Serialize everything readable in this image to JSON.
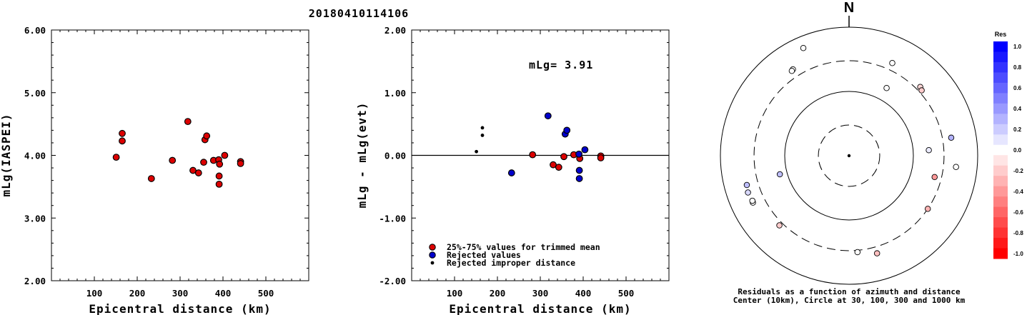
{
  "title": "20180410114106",
  "chart_data": [
    {
      "type": "scatter",
      "xlabel": "Epicentral distance (km)",
      "ylabel": "mLg(IASPEI)",
      "xlim": [
        0,
        600
      ],
      "ylim": [
        2.0,
        6.0
      ],
      "xticks": [
        "100",
        "200",
        "300",
        "400",
        "500"
      ],
      "yticks": [
        "2.00",
        "3.00",
        "4.00",
        "5.00",
        "6.00"
      ],
      "points": [
        {
          "x": 151,
          "y": 3.97
        },
        {
          "x": 165,
          "y": 4.35
        },
        {
          "x": 165,
          "y": 4.23
        },
        {
          "x": 233,
          "y": 3.63
        },
        {
          "x": 282,
          "y": 3.92
        },
        {
          "x": 318,
          "y": 4.54
        },
        {
          "x": 330,
          "y": 3.76
        },
        {
          "x": 343,
          "y": 3.72
        },
        {
          "x": 355,
          "y": 3.89
        },
        {
          "x": 358,
          "y": 4.25
        },
        {
          "x": 362,
          "y": 4.31
        },
        {
          "x": 378,
          "y": 3.92
        },
        {
          "x": 390,
          "y": 3.93
        },
        {
          "x": 391,
          "y": 3.54
        },
        {
          "x": 391,
          "y": 3.67
        },
        {
          "x": 392,
          "y": 3.86
        },
        {
          "x": 404,
          "y": 4.0
        },
        {
          "x": 441,
          "y": 3.9
        },
        {
          "x": 441,
          "y": 3.87
        }
      ]
    },
    {
      "type": "scatter",
      "xlabel": "Epicentral distance (km)",
      "ylabel": "mLg - mLg(evt)",
      "xlim": [
        0,
        600
      ],
      "ylim": [
        -2.0,
        2.0
      ],
      "xticks": [
        "100",
        "200",
        "300",
        "400",
        "500"
      ],
      "yticks": [
        "-2.00",
        "-1.00",
        "0.00",
        "1.00",
        "2.00"
      ],
      "annotation": "mLg= 3.91",
      "zero_line": 0,
      "series": [
        {
          "name": "25%-75% values for trimmed mean",
          "color": "#dd0000",
          "points": [
            {
              "x": 282,
              "y": 0.01
            },
            {
              "x": 330,
              "y": -0.15
            },
            {
              "x": 343,
              "y": -0.19
            },
            {
              "x": 355,
              "y": -0.02
            },
            {
              "x": 378,
              "y": 0.01
            },
            {
              "x": 392,
              "y": -0.05
            },
            {
              "x": 441,
              "y": -0.01
            },
            {
              "x": 441,
              "y": -0.04
            }
          ]
        },
        {
          "name": "Rejected values",
          "color": "#0000cc",
          "points": [
            {
              "x": 233,
              "y": -0.28
            },
            {
              "x": 318,
              "y": 0.63
            },
            {
              "x": 358,
              "y": 0.34
            },
            {
              "x": 362,
              "y": 0.4
            },
            {
              "x": 390,
              "y": 0.02
            },
            {
              "x": 391,
              "y": -0.37
            },
            {
              "x": 391,
              "y": -0.24
            },
            {
              "x": 404,
              "y": 0.09
            }
          ]
        },
        {
          "name": "Rejected improper distance",
          "color": "#000000",
          "points": [
            {
              "x": 151,
              "y": 0.06
            },
            {
              "x": 165,
              "y": 0.44
            },
            {
              "x": 165,
              "y": 0.32
            }
          ]
        }
      ]
    },
    {
      "type": "scatter",
      "subtype": "polar residual map",
      "north_label": "N",
      "caption_line1": "Residuals as a function of azimuth and distance",
      "caption_line2": "Center (10km), Circle at 30, 100, 300 and 1000 km",
      "rings_km": [
        30,
        100,
        300,
        1000
      ],
      "ring_styles": [
        "dashed",
        "solid",
        "dashed",
        "solid"
      ],
      "points": [
        {
          "azimuth": 25,
          "distance_km": 390,
          "res": 0.0
        },
        {
          "azimuth": 29,
          "distance_km": 160,
          "res": 0.0
        },
        {
          "azimuth": 46,
          "distance_km": 346,
          "res": -0.15
        },
        {
          "azimuth": 48,
          "distance_km": 330,
          "res": -0.2
        },
        {
          "azimuth": 80,
          "distance_km": 410,
          "res": 0.3
        },
        {
          "azimuth": 86,
          "distance_km": 175,
          "res": 0.08
        },
        {
          "azimuth": 96,
          "distance_km": 470,
          "res": 0.0
        },
        {
          "azimuth": 104,
          "distance_km": 235,
          "res": -0.4
        },
        {
          "azimuth": 124,
          "distance_km": 300,
          "res": -0.3
        },
        {
          "azimuth": 164,
          "distance_km": 380,
          "res": -0.25
        },
        {
          "azimuth": 175,
          "distance_km": 320,
          "res": 0.0
        },
        {
          "azimuth": 225,
          "distance_km": 340,
          "res": -0.2
        },
        {
          "azimuth": 244,
          "distance_km": 460,
          "res": 0.0
        },
        {
          "azimuth": 245,
          "distance_km": 455,
          "res": 0.0
        },
        {
          "azimuth": 250,
          "distance_km": 470,
          "res": 0.15
        },
        {
          "azimuth": 255,
          "distance_km": 130,
          "res": 0.25
        },
        {
          "azimuth": 254,
          "distance_km": 450,
          "res": 0.25
        },
        {
          "azimuth": 327,
          "distance_km": 400,
          "res": 0.0
        },
        {
          "azimuth": 326,
          "distance_km": 390,
          "res": 0.0
        },
        {
          "azimuth": 337,
          "distance_km": 660,
          "res": 0.0
        }
      ]
    }
  ],
  "colorbar": {
    "label": "Res",
    "ticks": [
      "1.0",
      "0.8",
      "0.6",
      "0.4",
      "0.2",
      "0.0",
      "-0.2",
      "-0.4",
      "-0.6",
      "-0.8",
      "-1.0"
    ]
  }
}
